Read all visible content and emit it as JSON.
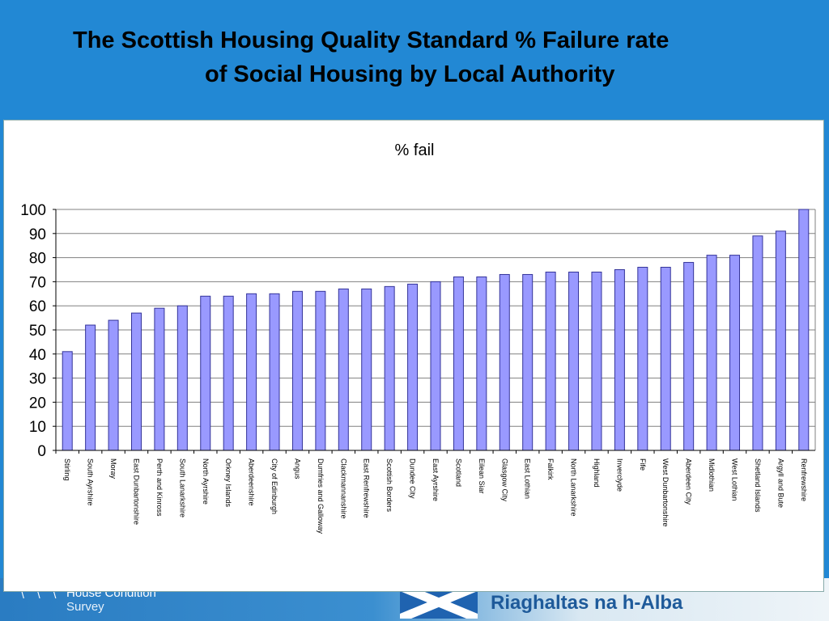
{
  "slide": {
    "title_line1": "The Scottish Housing Quality Standard % Failure rate",
    "title_line2": "of Social Housing by Local Authority"
  },
  "footer": {
    "survey_line1": "House Condition",
    "survey_line2": "Survey",
    "government": "Riaghaltas na h-Alba"
  },
  "colors": {
    "background": "#2288d4",
    "bar_fill": "#9999ff",
    "bar_stroke": "#333399"
  },
  "chart_data": {
    "type": "bar",
    "title": "% fail",
    "xlabel": "",
    "ylabel": "",
    "ylim": [
      0,
      100
    ],
    "yticks": [
      0,
      10,
      20,
      30,
      40,
      50,
      60,
      70,
      80,
      90,
      100
    ],
    "grid": true,
    "legend": "none",
    "categories": [
      "Stirling",
      "South Ayrshire",
      "Moray",
      "East Dunbartonshire",
      "Perth and Kinross",
      "South Lanarkshire",
      "North Ayrshire",
      "Orkney Islands",
      "Aberdeenshire",
      "City of Edinburgh",
      "Angus",
      "Dumfries and Galloway",
      "Clackmannanshire",
      "East Renfrewshire",
      "Scottish Borders",
      "Dundee City",
      "East Ayrshire",
      "Scotland",
      "Eilean Siar",
      "Glasgow City",
      "East Lothian",
      "Falkirk",
      "North Lanarkshire",
      "Highland",
      "Inverclyde",
      "Fife",
      "West Dunbartonshire",
      "Aberdeen City",
      "Midlothian",
      "West Lothian",
      "Shetland Islands",
      "Argyll and Bute",
      "Renfrewshire"
    ],
    "values": [
      41,
      52,
      54,
      57,
      59,
      60,
      64,
      64,
      65,
      65,
      66,
      66,
      67,
      67,
      68,
      69,
      70,
      72,
      72,
      73,
      73,
      74,
      74,
      74,
      75,
      76,
      76,
      78,
      81,
      81,
      89,
      91,
      100
    ]
  }
}
